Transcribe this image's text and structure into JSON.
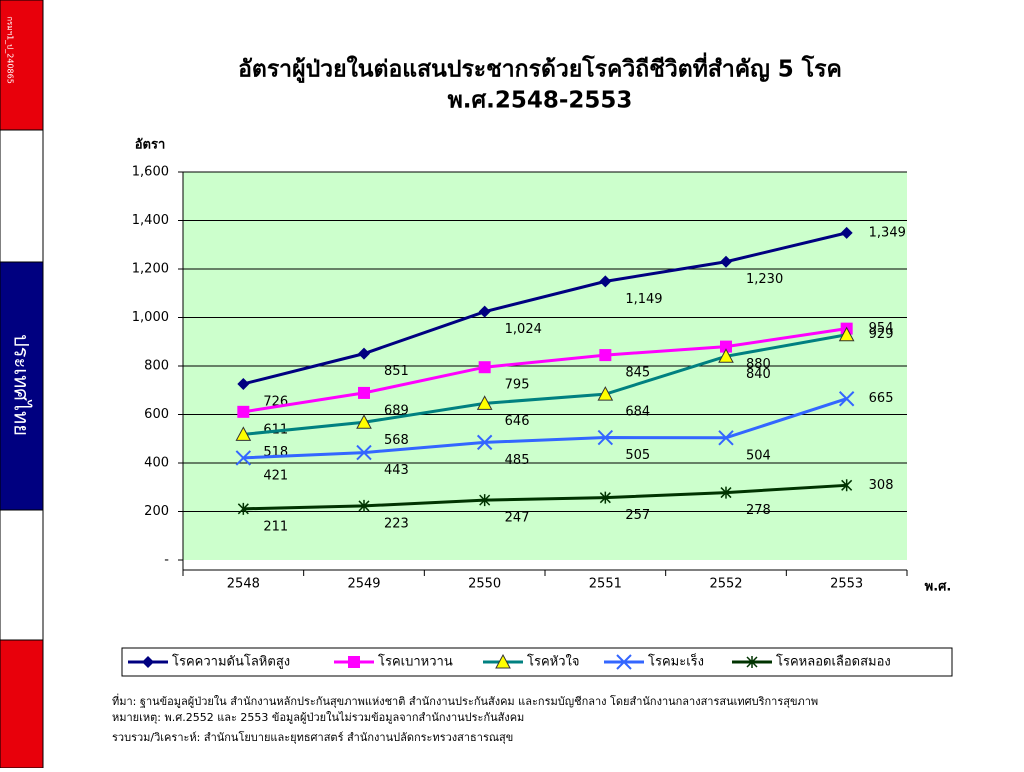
{
  "side": {
    "code": "กรมฯ1_ป_240865",
    "country": "ประเทศไทย"
  },
  "chart_data": {
    "type": "line",
    "title": [
      "อัตราผู้ป่วยในต่อแสนประชากรด้วยโรควิถีชีวิตที่สำคัญ 5 โรค",
      "พ.ศ.2548-2553"
    ],
    "y_label": "อัตรา",
    "x_label": "พ.ศ.",
    "categories": [
      "2548",
      "2549",
      "2550",
      "2551",
      "2552",
      "2553"
    ],
    "ylim": [
      0,
      1600
    ],
    "yticks": [
      {
        "value": 0,
        "label": "-"
      },
      200,
      400,
      600,
      800,
      {
        "value": 1000,
        "label": "1,000"
      },
      {
        "value": 1200,
        "label": "1,200"
      },
      {
        "value": 1400,
        "label": "1,400"
      },
      {
        "value": 1600,
        "label": "1,600"
      }
    ],
    "grid": true,
    "legend": "bottom",
    "series": [
      {
        "name": "โรคความดันโลหิตสูง",
        "color": "#000080",
        "marker": "diamond",
        "values": [
          726,
          851,
          1024,
          1149,
          1230,
          1349
        ],
        "value_labels": [
          "726",
          "851",
          "1,024",
          "1,149",
          "1,230",
          "1,349"
        ]
      },
      {
        "name": "โรคเบาหวาน",
        "color": "#ff00ff",
        "marker": "square",
        "values": [
          611,
          689,
          795,
          845,
          880,
          954
        ]
      },
      {
        "name": "โรคหัวใจ",
        "color": "#008080",
        "marker": "triangle",
        "values": [
          518,
          568,
          646,
          684,
          840,
          929
        ]
      },
      {
        "name": "โรคมะเร็ง",
        "color": "#3366ff",
        "marker": "x",
        "values": [
          421,
          443,
          485,
          505,
          504,
          665
        ]
      },
      {
        "name": "โรคหลอดเลือดสมอง",
        "color": "#003300",
        "marker": "star",
        "values": [
          211,
          223,
          247,
          257,
          278,
          308
        ]
      }
    ],
    "notes": [
      "ที่มา: ฐานข้อมูลผู้ป่วยใน สำนักงานหลักประกันสุขภาพแห่งชาติ สำนักงานประกันสังคม และกรมบัญชีกลาง โดยสำนักงานกลางสารสนเทศบริการสุขภาพ",
      "หมายเหตุ: พ.ศ.2552 และ 2553 ข้อมูลผู้ป่วยในไม่รวมข้อมูลจากสำนักงานประกันสังคม",
      "รวบรวม/วิเคราะห์: สำนักนโยบายและยุทธศาสตร์ สำนักงานปลัดกระทรวงสาธารณสุข"
    ]
  }
}
